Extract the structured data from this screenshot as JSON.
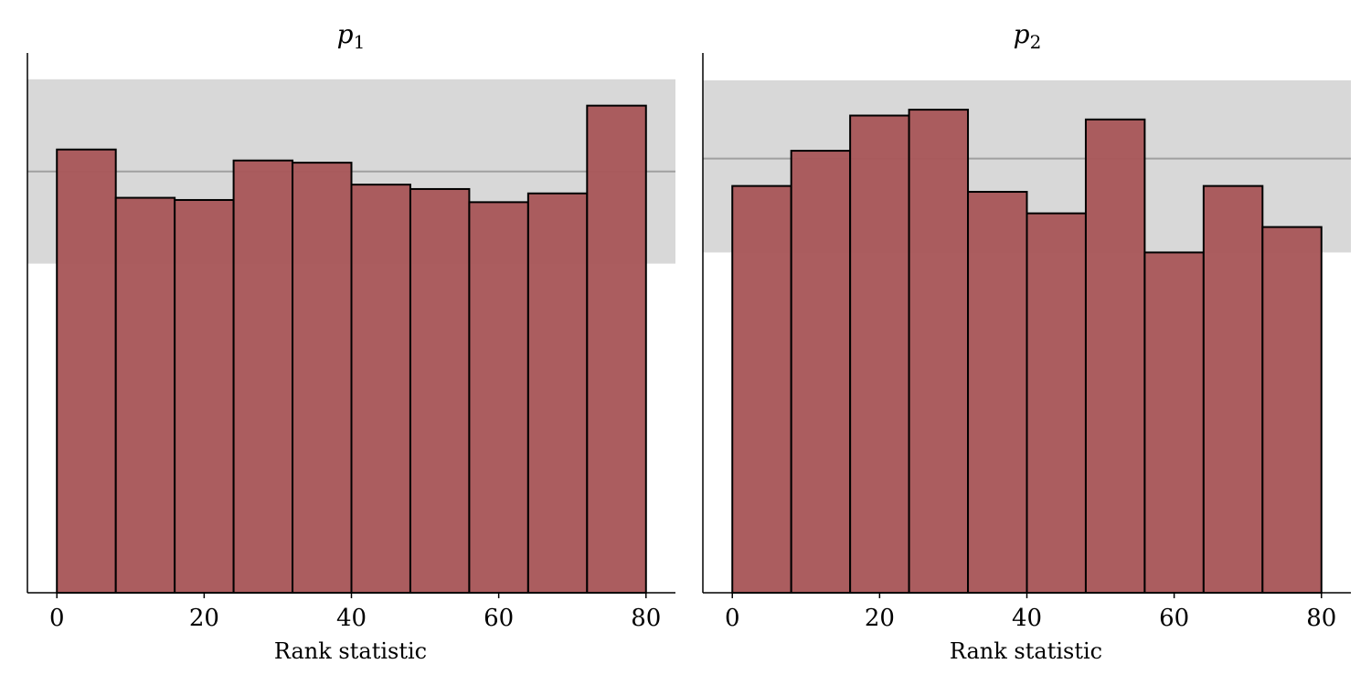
{
  "chart_data": [
    {
      "type": "bar",
      "title_var": "p",
      "title_sub": "1",
      "xlabel": "Rank statistic",
      "ylabel": "",
      "bin_edges": [
        0,
        8,
        16,
        24,
        32,
        40,
        48,
        56,
        64,
        72,
        80
      ],
      "values": [
        101,
        90,
        89.5,
        98.5,
        98,
        93,
        92,
        89,
        91,
        111
      ],
      "expected": 96,
      "band": [
        75,
        117
      ],
      "xlim": [
        -4,
        84
      ],
      "ylim": [
        0,
        123
      ],
      "xticks": [
        0,
        20,
        40,
        60,
        80
      ],
      "grid": false,
      "colors": {
        "bar": "#a8585a",
        "band": "#d8d8d8",
        "expected_line": "#a0a0a0",
        "edge": "#000000"
      }
    },
    {
      "type": "bar",
      "title_var": "p",
      "title_sub": "2",
      "xlabel": "Rank statistic",
      "ylabel": "",
      "bin_edges": [
        0,
        8,
        16,
        24,
        32,
        40,
        48,
        56,
        64,
        72,
        80
      ],
      "values": [
        104,
        113,
        122,
        123.5,
        102.5,
        97,
        121,
        87,
        104,
        93.5
      ],
      "expected": 111,
      "band": [
        87,
        131
      ],
      "xlim": [
        -4,
        84
      ],
      "ylim": [
        0,
        138
      ],
      "xticks": [
        0,
        20,
        40,
        60,
        80
      ],
      "grid": false,
      "colors": {
        "bar": "#a8585a",
        "band": "#d8d8d8",
        "expected_line": "#a0a0a0",
        "edge": "#000000"
      }
    }
  ]
}
